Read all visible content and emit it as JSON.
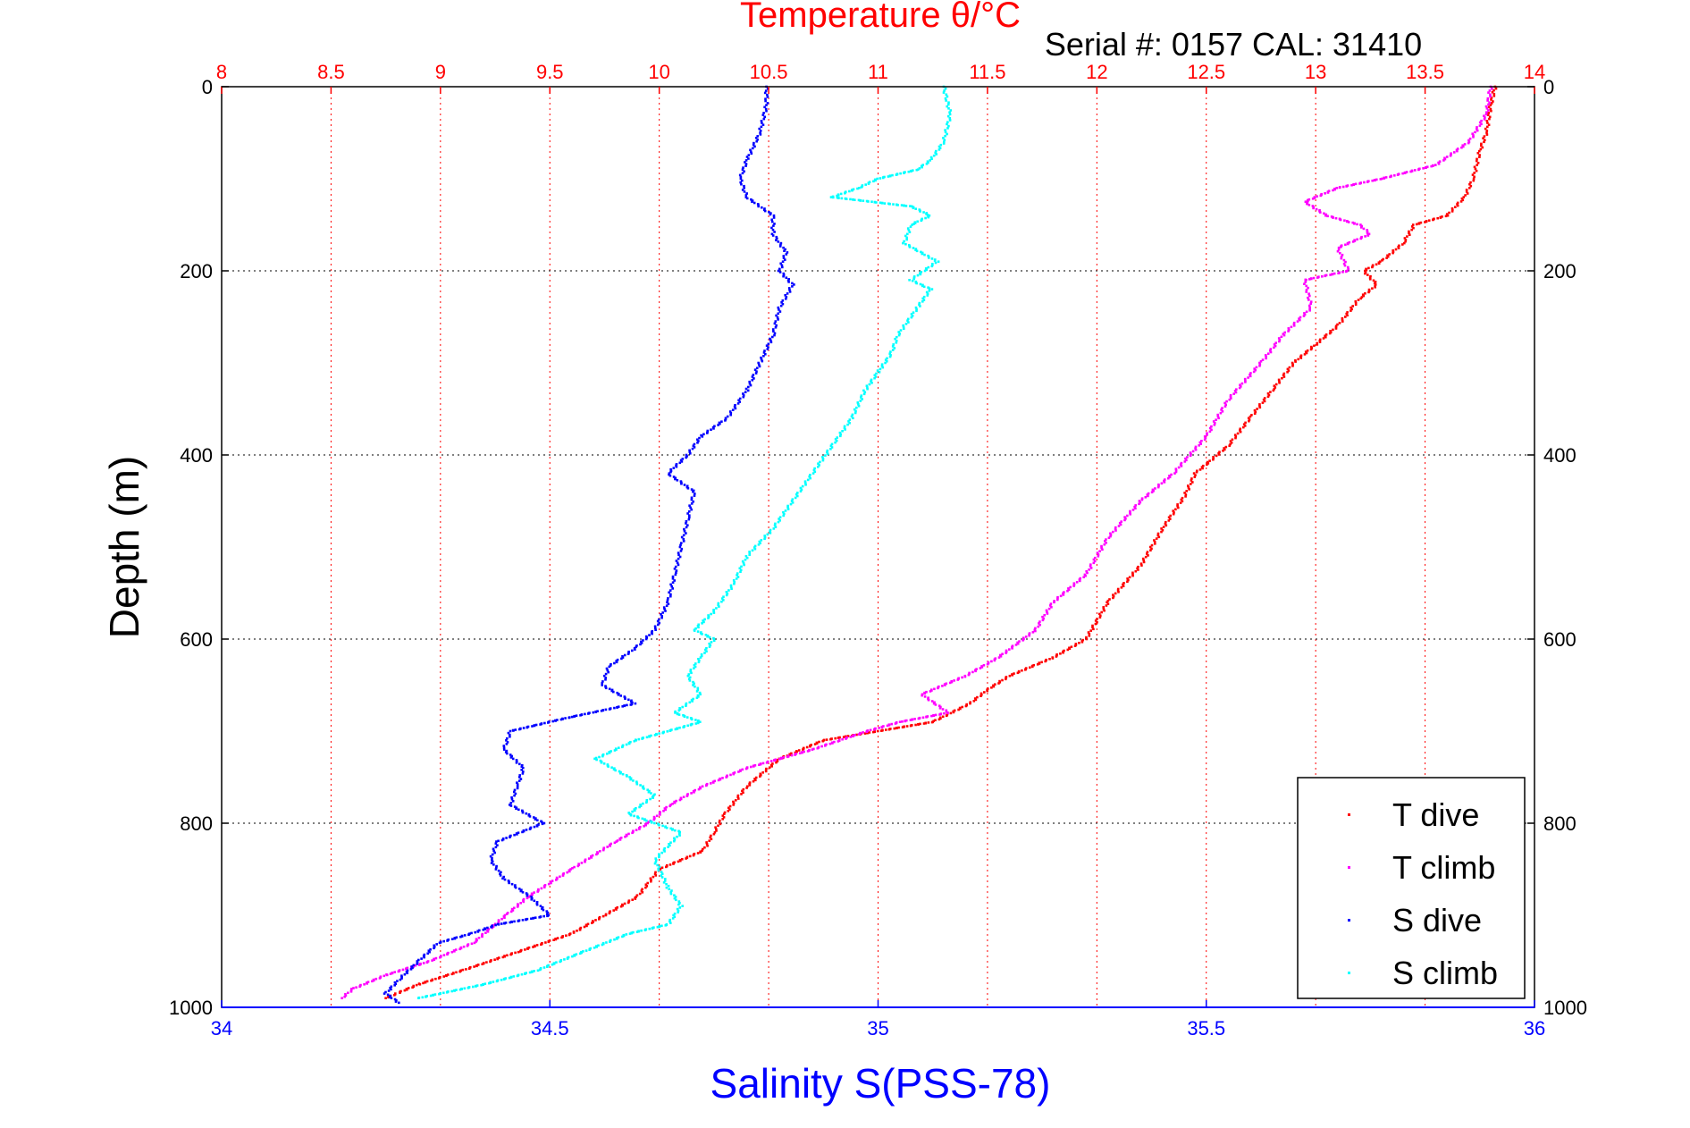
{
  "chart_data": {
    "type": "scatter",
    "title_top": "Temperature θ/°C",
    "annotation": "Serial #: 0157  CAL: 31410",
    "xlabel": "Salinity S(PSS-78)",
    "ylabel": "Depth (m)",
    "x_bottom": {
      "label": "Salinity S(PSS-78)",
      "range": [
        34,
        36
      ],
      "ticks": [
        "34",
        "34.5",
        "35",
        "35.5",
        "36"
      ],
      "color": "#0000ff"
    },
    "x_top": {
      "label": "Temperature θ/°C",
      "range": [
        8,
        14
      ],
      "ticks": [
        "8",
        "8.5",
        "9",
        "9.5",
        "10",
        "10.5",
        "11",
        "11.5",
        "12",
        "12.5",
        "13",
        "13.5",
        "14"
      ],
      "color": "#ff0000"
    },
    "y": {
      "range": [
        0,
        1000
      ],
      "reversed": true,
      "ticks": [
        "0",
        "200",
        "400",
        "600",
        "800",
        "1000"
      ]
    },
    "grid": true,
    "legend_position": "bottom-right",
    "series": [
      {
        "name": "T dive",
        "axis": "temperature",
        "color": "#ff0000",
        "points": [
          [
            13.82,
            0
          ],
          [
            13.8,
            20
          ],
          [
            13.78,
            50
          ],
          [
            13.75,
            70
          ],
          [
            13.72,
            100
          ],
          [
            13.68,
            120
          ],
          [
            13.6,
            140
          ],
          [
            13.45,
            150
          ],
          [
            13.4,
            170
          ],
          [
            13.3,
            190
          ],
          [
            13.22,
            200
          ],
          [
            13.28,
            215
          ],
          [
            13.2,
            230
          ],
          [
            13.1,
            260
          ],
          [
            13.0,
            280
          ],
          [
            12.9,
            300
          ],
          [
            12.8,
            330
          ],
          [
            12.7,
            360
          ],
          [
            12.6,
            390
          ],
          [
            12.45,
            420
          ],
          [
            12.4,
            445
          ],
          [
            12.3,
            480
          ],
          [
            12.2,
            520
          ],
          [
            12.05,
            560
          ],
          [
            11.95,
            600
          ],
          [
            11.8,
            620
          ],
          [
            11.6,
            640
          ],
          [
            11.5,
            655
          ],
          [
            11.42,
            670
          ],
          [
            11.25,
            690
          ],
          [
            11.0,
            700
          ],
          [
            10.75,
            710
          ],
          [
            10.55,
            730
          ],
          [
            10.4,
            760
          ],
          [
            10.3,
            790
          ],
          [
            10.25,
            810
          ],
          [
            10.2,
            830
          ],
          [
            10.0,
            850
          ],
          [
            9.9,
            880
          ],
          [
            9.75,
            900
          ],
          [
            9.6,
            920
          ],
          [
            9.35,
            940
          ],
          [
            9.1,
            960
          ],
          [
            8.9,
            975
          ],
          [
            8.8,
            985
          ],
          [
            8.75,
            990
          ]
        ]
      },
      {
        "name": "T climb",
        "axis": "temperature",
        "color": "#ff00ff",
        "points": [
          [
            13.8,
            0
          ],
          [
            13.78,
            30
          ],
          [
            13.7,
            60
          ],
          [
            13.55,
            85
          ],
          [
            13.3,
            100
          ],
          [
            13.1,
            110
          ],
          [
            12.95,
            125
          ],
          [
            13.05,
            140
          ],
          [
            13.2,
            150
          ],
          [
            13.25,
            160
          ],
          [
            13.1,
            175
          ],
          [
            13.15,
            200
          ],
          [
            12.95,
            210
          ],
          [
            12.98,
            240
          ],
          [
            12.85,
            270
          ],
          [
            12.75,
            300
          ],
          [
            12.6,
            340
          ],
          [
            12.5,
            380
          ],
          [
            12.35,
            420
          ],
          [
            12.2,
            450
          ],
          [
            12.05,
            490
          ],
          [
            11.95,
            530
          ],
          [
            11.8,
            560
          ],
          [
            11.72,
            590
          ],
          [
            11.55,
            620
          ],
          [
            11.4,
            640
          ],
          [
            11.2,
            660
          ],
          [
            11.32,
            680
          ],
          [
            11.1,
            690
          ],
          [
            10.95,
            700
          ],
          [
            10.7,
            720
          ],
          [
            10.4,
            740
          ],
          [
            10.2,
            760
          ],
          [
            10.05,
            780
          ],
          [
            9.95,
            800
          ],
          [
            9.8,
            820
          ],
          [
            9.6,
            850
          ],
          [
            9.4,
            880
          ],
          [
            9.3,
            900
          ],
          [
            9.15,
            930
          ],
          [
            8.95,
            950
          ],
          [
            8.75,
            965
          ],
          [
            8.6,
            980
          ],
          [
            8.55,
            990
          ]
        ]
      },
      {
        "name": "S dive",
        "axis": "salinity",
        "color": "#0000ff",
        "points": [
          [
            34.83,
            0
          ],
          [
            34.83,
            20
          ],
          [
            34.82,
            50
          ],
          [
            34.8,
            80
          ],
          [
            34.79,
            100
          ],
          [
            34.8,
            120
          ],
          [
            34.84,
            140
          ],
          [
            34.84,
            160
          ],
          [
            34.86,
            180
          ],
          [
            34.85,
            200
          ],
          [
            34.87,
            215
          ],
          [
            34.85,
            240
          ],
          [
            34.84,
            270
          ],
          [
            34.82,
            300
          ],
          [
            34.8,
            330
          ],
          [
            34.77,
            360
          ],
          [
            34.73,
            380
          ],
          [
            34.71,
            400
          ],
          [
            34.68,
            420
          ],
          [
            34.72,
            440
          ],
          [
            34.71,
            470
          ],
          [
            34.7,
            500
          ],
          [
            34.69,
            530
          ],
          [
            34.68,
            560
          ],
          [
            34.66,
            590
          ],
          [
            34.63,
            610
          ],
          [
            34.59,
            630
          ],
          [
            34.58,
            650
          ],
          [
            34.63,
            670
          ],
          [
            34.53,
            685
          ],
          [
            34.44,
            700
          ],
          [
            34.43,
            720
          ],
          [
            34.46,
            740
          ],
          [
            34.45,
            760
          ],
          [
            34.44,
            780
          ],
          [
            34.49,
            800
          ],
          [
            34.42,
            820
          ],
          [
            34.41,
            840
          ],
          [
            34.43,
            860
          ],
          [
            34.47,
            880
          ],
          [
            34.5,
            900
          ],
          [
            34.42,
            910
          ],
          [
            34.38,
            920
          ],
          [
            34.33,
            930
          ],
          [
            34.3,
            950
          ],
          [
            34.27,
            970
          ],
          [
            34.25,
            985
          ],
          [
            34.27,
            995
          ]
        ]
      },
      {
        "name": "S climb",
        "axis": "salinity",
        "color": "#00ffff",
        "points": [
          [
            35.1,
            0
          ],
          [
            35.11,
            30
          ],
          [
            35.1,
            60
          ],
          [
            35.08,
            80
          ],
          [
            35.06,
            90
          ],
          [
            35.0,
            100
          ],
          [
            34.97,
            110
          ],
          [
            34.93,
            120
          ],
          [
            35.05,
            130
          ],
          [
            35.08,
            140
          ],
          [
            35.05,
            150
          ],
          [
            35.04,
            170
          ],
          [
            35.09,
            190
          ],
          [
            35.05,
            210
          ],
          [
            35.08,
            220
          ],
          [
            35.06,
            240
          ],
          [
            35.03,
            270
          ],
          [
            35.02,
            290
          ],
          [
            35.0,
            310
          ],
          [
            34.98,
            330
          ],
          [
            34.96,
            360
          ],
          [
            34.93,
            390
          ],
          [
            34.9,
            420
          ],
          [
            34.87,
            450
          ],
          [
            34.84,
            480
          ],
          [
            34.8,
            510
          ],
          [
            34.78,
            540
          ],
          [
            34.75,
            570
          ],
          [
            34.72,
            590
          ],
          [
            34.75,
            600
          ],
          [
            34.73,
            620
          ],
          [
            34.71,
            640
          ],
          [
            34.73,
            660
          ],
          [
            34.69,
            680
          ],
          [
            34.73,
            690
          ],
          [
            34.63,
            710
          ],
          [
            34.57,
            730
          ],
          [
            34.62,
            750
          ],
          [
            34.66,
            770
          ],
          [
            34.62,
            790
          ],
          [
            34.7,
            810
          ],
          [
            34.66,
            840
          ],
          [
            34.68,
            870
          ],
          [
            34.7,
            890
          ],
          [
            34.68,
            910
          ],
          [
            34.62,
            920
          ],
          [
            34.55,
            940
          ],
          [
            34.48,
            960
          ],
          [
            34.4,
            975
          ],
          [
            34.3,
            990
          ]
        ]
      }
    ]
  }
}
